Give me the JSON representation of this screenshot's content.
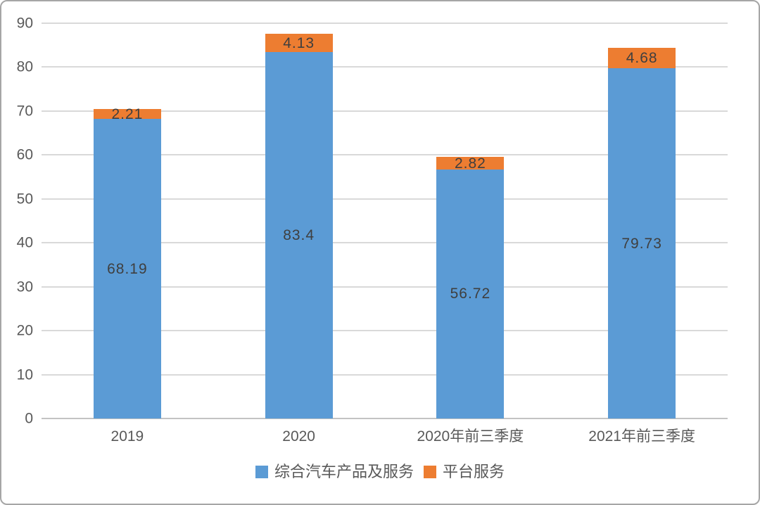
{
  "chart_data": {
    "type": "bar",
    "stacked": true,
    "title": "",
    "categories": [
      "2019",
      "2020",
      "2020年前三季度",
      "2021年前三季度"
    ],
    "series": [
      {
        "name": "综合汽车产品及服务",
        "color": "#5B9BD5",
        "values": [
          68.19,
          83.4,
          56.72,
          79.73
        ],
        "labels": [
          "68.19",
          "83.4",
          "56.72",
          "79.73"
        ]
      },
      {
        "name": "平台服务",
        "color": "#ED7D31",
        "values": [
          2.21,
          4.13,
          2.82,
          4.68
        ],
        "labels": [
          "2.21",
          "4.13",
          "2.82",
          "4.68"
        ]
      }
    ],
    "ylim": [
      0,
      90
    ],
    "yticks": [
      0,
      10,
      20,
      30,
      40,
      50,
      60,
      70,
      80,
      90
    ],
    "grid": true,
    "legend_position": "bottom",
    "xlabel": "",
    "ylabel": "",
    "colors": {
      "gridline": "#d9d9d9",
      "zero_line": "#c3c3c3",
      "axis_text": "#595959",
      "data_label": "#3f3f3f",
      "border": "#a6a6a6",
      "background": "#ffffff"
    }
  }
}
